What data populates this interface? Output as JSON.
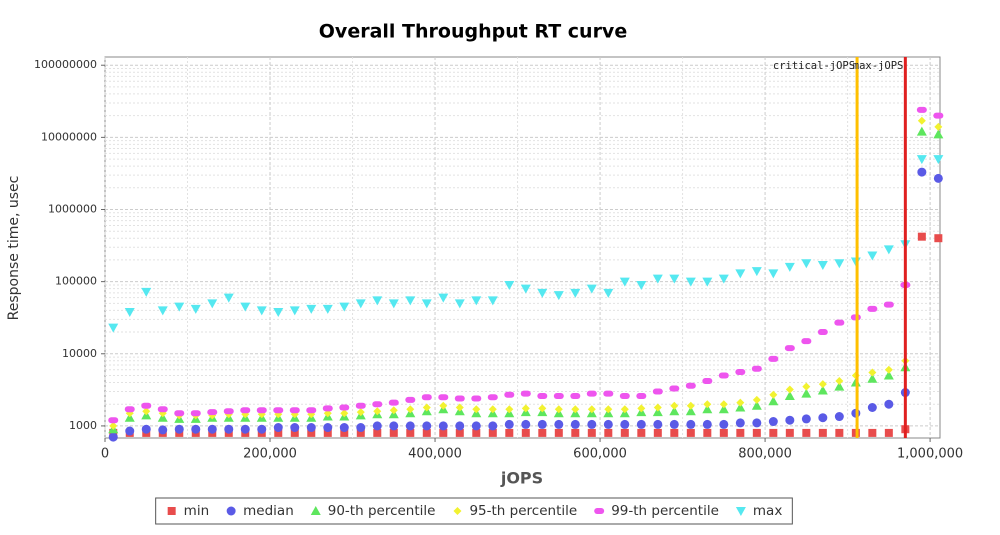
{
  "chart_data": {
    "type": "scatter",
    "title": "Overall Throughput RT curve",
    "x_label": "jOPS",
    "y_label": "Response time, usec",
    "log_y": true,
    "grid": true,
    "xlim": [
      0,
      1012000
    ],
    "ylim": [
      680,
      130000000
    ],
    "xticks": [
      0,
      {
        "value": 200000,
        "label": "200,000"
      },
      {
        "value": 400000,
        "label": "400,000"
      },
      {
        "value": 600000,
        "label": "600,000"
      },
      {
        "value": 800000,
        "label": "800,000"
      },
      {
        "value": 1000000,
        "label": "1,000,000"
      }
    ],
    "yticks": [
      1000,
      10000,
      100000,
      1000000,
      10000000,
      100000000
    ],
    "x": [
      10000,
      30000,
      50000,
      70000,
      90000,
      110000,
      130000,
      150000,
      170000,
      190000,
      210000,
      230000,
      250000,
      270000,
      290000,
      310000,
      330000,
      350000,
      370000,
      390000,
      410000,
      430000,
      450000,
      470000,
      490000,
      510000,
      530000,
      550000,
      570000,
      590000,
      610000,
      630000,
      650000,
      670000,
      690000,
      710000,
      730000,
      750000,
      770000,
      790000,
      810000,
      830000,
      850000,
      870000,
      890000,
      910000,
      930000,
      950000,
      970000,
      990000,
      1010000
    ],
    "series": [
      {
        "name": "min",
        "color": "#e84c4c",
        "marker": "square",
        "values": [
          800,
          800,
          800,
          800,
          800,
          800,
          800,
          800,
          800,
          800,
          800,
          800,
          800,
          800,
          800,
          800,
          800,
          800,
          800,
          800,
          800,
          800,
          800,
          800,
          800,
          800,
          800,
          800,
          800,
          800,
          800,
          800,
          800,
          800,
          800,
          800,
          800,
          800,
          800,
          800,
          800,
          800,
          800,
          800,
          800,
          800,
          800,
          800,
          900,
          420000,
          400000
        ]
      },
      {
        "name": "median",
        "color": "#5a5ae6",
        "marker": "circle",
        "values": [
          700,
          850,
          900,
          880,
          900,
          900,
          900,
          900,
          900,
          900,
          950,
          950,
          950,
          950,
          950,
          950,
          1000,
          1000,
          1000,
          1000,
          1000,
          1000,
          1000,
          1000,
          1050,
          1050,
          1050,
          1050,
          1050,
          1050,
          1050,
          1050,
          1050,
          1050,
          1050,
          1050,
          1050,
          1050,
          1100,
          1100,
          1150,
          1200,
          1250,
          1300,
          1350,
          1500,
          1800,
          2000,
          2900,
          3300000,
          2700000
        ]
      },
      {
        "name": "90-th percentile",
        "color": "#5ee65e",
        "marker": "triangle",
        "values": [
          900,
          1300,
          1400,
          1300,
          1250,
          1250,
          1300,
          1300,
          1300,
          1300,
          1300,
          1300,
          1300,
          1350,
          1350,
          1400,
          1450,
          1450,
          1500,
          1600,
          1700,
          1600,
          1500,
          1500,
          1500,
          1550,
          1550,
          1500,
          1500,
          1500,
          1500,
          1500,
          1550,
          1550,
          1600,
          1600,
          1700,
          1700,
          1800,
          1900,
          2200,
          2600,
          2800,
          3100,
          3500,
          4000,
          4500,
          5000,
          6500,
          12000000,
          11000000
        ]
      },
      {
        "name": "95-th percentile",
        "color": "#f2f230",
        "marker": "diamond",
        "values": [
          1000,
          1500,
          1600,
          1500,
          1400,
          1400,
          1400,
          1450,
          1450,
          1450,
          1450,
          1450,
          1450,
          1500,
          1500,
          1550,
          1600,
          1650,
          1700,
          1800,
          1900,
          1800,
          1700,
          1700,
          1700,
          1750,
          1750,
          1700,
          1700,
          1700,
          1700,
          1700,
          1750,
          1800,
          1900,
          1900,
          2000,
          2000,
          2100,
          2300,
          2700,
          3200,
          3500,
          3800,
          4200,
          5000,
          5500,
          6000,
          8000,
          17000000,
          14000000
        ]
      },
      {
        "name": "99-th percentile",
        "color": "#ee55ee",
        "marker": "pill",
        "values": [
          1200,
          1700,
          1900,
          1700,
          1500,
          1500,
          1550,
          1600,
          1650,
          1650,
          1650,
          1650,
          1650,
          1750,
          1800,
          1900,
          2000,
          2100,
          2300,
          2500,
          2500,
          2400,
          2400,
          2500,
          2700,
          2800,
          2600,
          2600,
          2600,
          2800,
          2800,
          2600,
          2600,
          3000,
          3300,
          3600,
          4200,
          5000,
          5600,
          6200,
          8500,
          12000,
          15000,
          20000,
          27000,
          32000,
          42000,
          48000,
          90000,
          24000000,
          20000000
        ]
      },
      {
        "name": "max",
        "color": "#55e8f0",
        "marker": "down-triangle",
        "values": [
          23000,
          38000,
          72000,
          40000,
          45000,
          42000,
          50000,
          60000,
          45000,
          40000,
          38000,
          40000,
          42000,
          42000,
          45000,
          50000,
          55000,
          50000,
          55000,
          50000,
          60000,
          50000,
          55000,
          55000,
          90000,
          80000,
          70000,
          65000,
          70000,
          80000,
          70000,
          100000,
          90000,
          110000,
          110000,
          100000,
          100000,
          110000,
          130000,
          140000,
          130000,
          160000,
          180000,
          170000,
          180000,
          190000,
          230000,
          280000,
          330000,
          5000000,
          5000000
        ]
      }
    ],
    "annotations": [
      {
        "label": "critical-jOPS",
        "x": 911500,
        "color": "#ffc000"
      },
      {
        "label": "max-jOPS",
        "x": 970000,
        "color": "#e02020"
      }
    ]
  }
}
